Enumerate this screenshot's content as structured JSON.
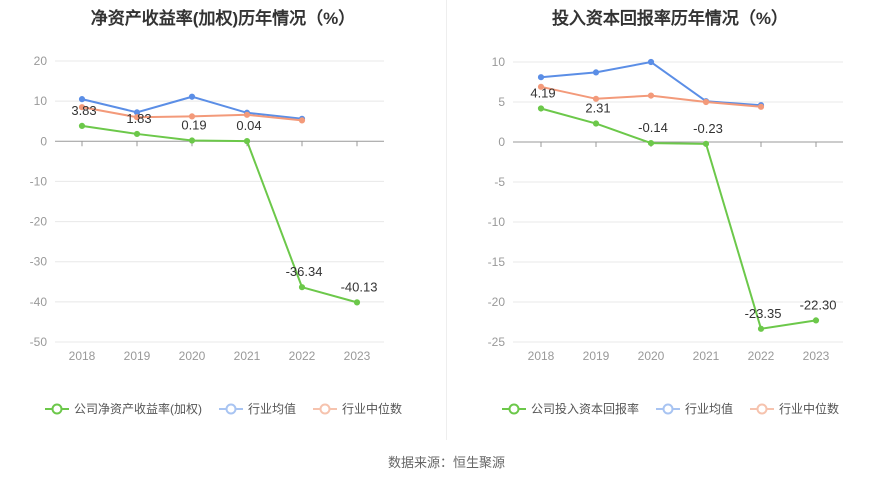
{
  "source": "数据来源：恒生聚源",
  "colors": {
    "company": "#6cc84a",
    "industry_avg": "#5b8ee6",
    "industry_median": "#f39a7a",
    "grid": "#e8e8e8",
    "axis": "#999999",
    "tick": "#999999"
  },
  "chart_data": [
    {
      "type": "line",
      "title": "净资产收益率(加权)历年情况（%）",
      "categories": [
        "2018",
        "2019",
        "2020",
        "2021",
        "2022",
        "2023"
      ],
      "ylim": [
        -50,
        20
      ],
      "yticks": [
        20,
        10,
        0,
        -10,
        -20,
        -30,
        -40,
        -50
      ],
      "grid": true,
      "legend_position": "bottom",
      "series": [
        {
          "name": "公司净资产收益率(加权)",
          "key": "company",
          "values": [
            3.83,
            1.83,
            0.19,
            0.04,
            -36.34,
            -40.13
          ],
          "labels": [
            "3.83",
            "1.83",
            "0.19",
            "0.04",
            "-36.34",
            "-40.13"
          ]
        },
        {
          "name": "行业均值",
          "key": "industry_avg",
          "values": [
            10.5,
            7.2,
            11.1,
            7.1,
            5.6,
            null
          ]
        },
        {
          "name": "行业中位数",
          "key": "industry_median",
          "values": [
            8.5,
            6.0,
            6.2,
            6.6,
            5.2,
            null
          ]
        }
      ]
    },
    {
      "type": "line",
      "title": "投入资本回报率历年情况（%）",
      "categories": [
        "2018",
        "2019",
        "2020",
        "2021",
        "2022",
        "2023"
      ],
      "ylim": [
        -25,
        10
      ],
      "yticks": [
        10,
        5,
        0,
        -5,
        -10,
        -15,
        -20,
        -25
      ],
      "grid": true,
      "legend_position": "bottom",
      "series": [
        {
          "name": "公司投入资本回报率",
          "key": "company",
          "values": [
            4.19,
            2.31,
            -0.14,
            -0.23,
            -23.35,
            -22.3
          ],
          "labels": [
            "4.19",
            "2.31",
            "-0.14",
            "-0.23",
            "-23.35",
            "-22.30"
          ]
        },
        {
          "name": "行业均值",
          "key": "industry_avg",
          "values": [
            8.1,
            8.7,
            10.0,
            5.1,
            4.6,
            null
          ]
        },
        {
          "name": "行业中位数",
          "key": "industry_median",
          "values": [
            6.9,
            5.4,
            5.8,
            5.0,
            4.4,
            null
          ]
        }
      ]
    }
  ]
}
